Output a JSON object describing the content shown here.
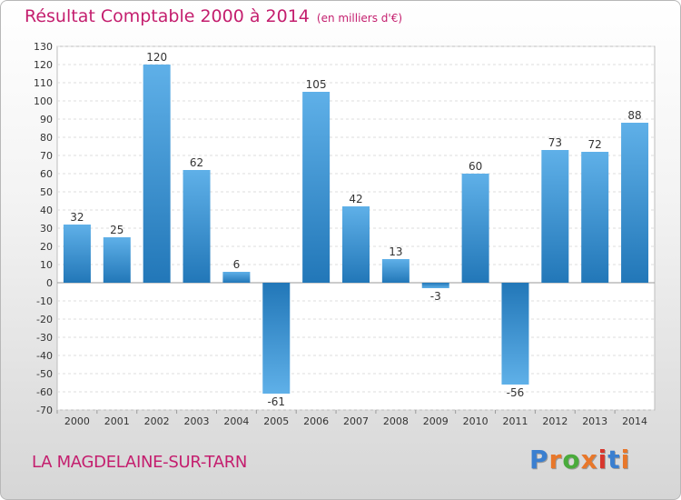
{
  "header": {
    "title": "Résultat Comptable 2000 à 2014",
    "subtitle": "(en milliers d'€)"
  },
  "footer": {
    "commune": "LA MAGDELAINE-SUR-TARN",
    "logo": "Proxiti"
  },
  "colors": {
    "title": "#c41e6e",
    "bar_light": "#5fb0e8",
    "bar_dark": "#2277b8",
    "logo_letters": [
      "#3a7fd0",
      "#e8772a",
      "#4aab3c",
      "#e8772a",
      "#d8362d",
      "#3a7fd0",
      "#e8772a"
    ]
  },
  "chart_data": {
    "type": "bar",
    "categories": [
      "2000",
      "2001",
      "2002",
      "2003",
      "2004",
      "2005",
      "2006",
      "2007",
      "2008",
      "2009",
      "2010",
      "2011",
      "2012",
      "2013",
      "2014"
    ],
    "values": [
      32,
      25,
      120,
      62,
      6,
      -61,
      105,
      42,
      13,
      -3,
      60,
      -56,
      73,
      72,
      88
    ],
    "title": "Résultat Comptable 2000 à 2014",
    "subtitle": "(en milliers d'€)",
    "ylim": [
      -70,
      130
    ],
    "yticks": [
      130,
      120,
      110,
      100,
      90,
      80,
      70,
      60,
      50,
      40,
      30,
      20,
      10,
      0,
      -10,
      -20,
      -30,
      -40,
      -50,
      -60,
      -70
    ],
    "grid": true,
    "data_labels": true
  }
}
